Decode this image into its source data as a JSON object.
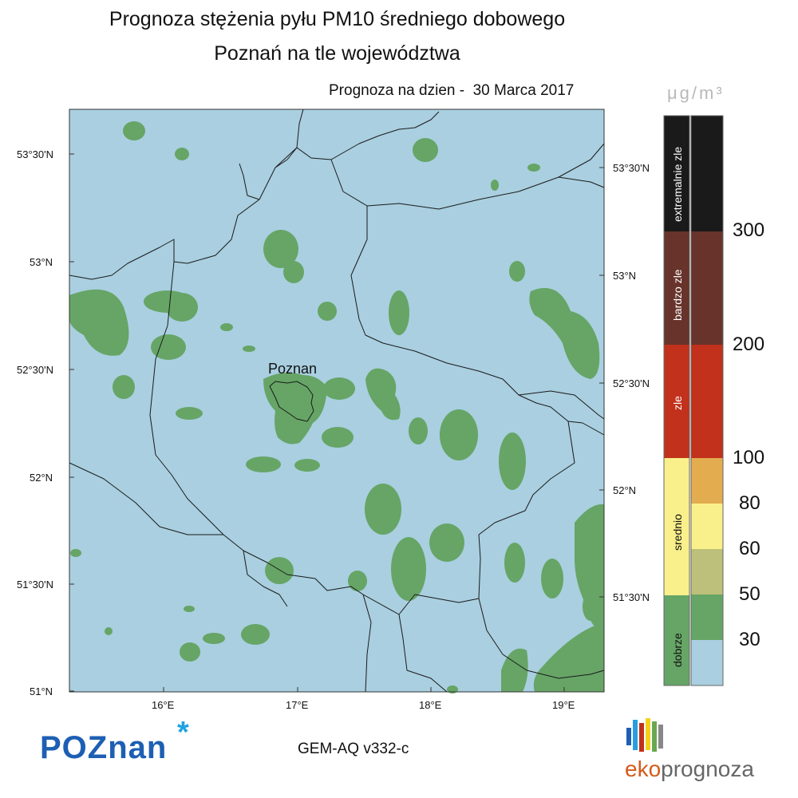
{
  "title_line1": "Prognoza stężenia pyłu PM10 średniego dobowego",
  "title_line2": "Poznań na tle województwa",
  "forecast_date": "Prognoza na dzien -  30 Marca 2017",
  "unit": "μg/m³",
  "city": "Poznan",
  "left_lat_labels": [
    "53°30'N",
    "53°N",
    "52°30'N",
    "52°N",
    "51°30'N",
    "51°N"
  ],
  "right_lat_labels": [
    "53°30'N",
    "53°N",
    "52°30'N",
    "52°N",
    "51°30'N"
  ],
  "lon_labels": [
    "16°E",
    "17°E",
    "18°E",
    "19°E"
  ],
  "categories": [
    "extremalnie zle",
    "bardzo zle",
    "zle",
    "srednio",
    "dobrze"
  ],
  "thresholds": [
    "300",
    "200",
    "100",
    "80",
    "60",
    "50",
    "30"
  ],
  "model": "GEM-AQ v332-c",
  "logo_left": "POZnan",
  "logo_right_a": "eko",
  "logo_right_b": "prognoza",
  "colors": {
    "background": "#a9cfe0",
    "good": "#66a566",
    "level_0_30": "#a9cfe0",
    "level_30_50": "#66a566",
    "level_50_60": "#bdc07a",
    "level_60_80": "#faf08b",
    "level_80_100": "#e3ac4f",
    "level_100_200": "#c1311c",
    "level_200_300": "#67332b",
    "level_300_plus": "#1a1a1a",
    "cat_extremalnie_zle": "#1a1a1a",
    "cat_bardzo_zle": "#67332b",
    "cat_zle": "#c1311c",
    "cat_srednio": "#faf08b",
    "cat_dobrze": "#66a566"
  }
}
